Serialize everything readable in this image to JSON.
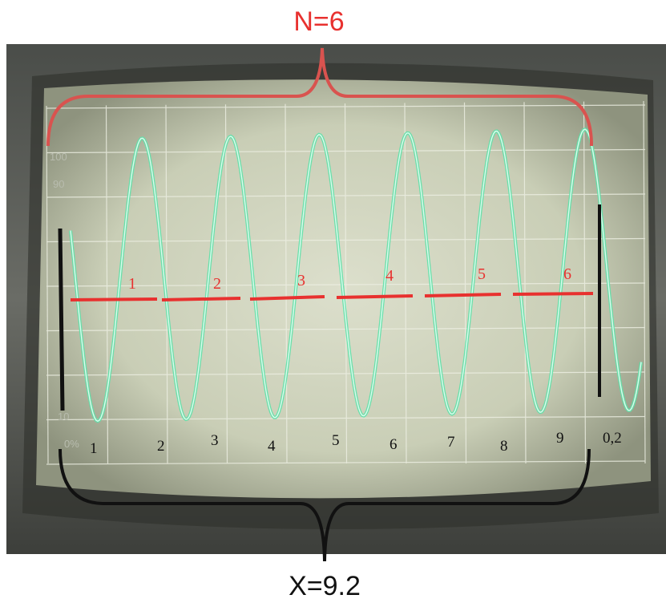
{
  "title": "N=6",
  "bottom_label": "X=9.2",
  "graticule": {
    "y_labels": [
      "100",
      "90",
      "10",
      "0%"
    ],
    "x_labels": [
      "1",
      "2",
      "3",
      "4",
      "5",
      "6",
      "7",
      "8",
      "9",
      "0,2"
    ]
  },
  "cycle_labels": [
    "1",
    "2",
    "3",
    "4",
    "5",
    "6"
  ]
}
